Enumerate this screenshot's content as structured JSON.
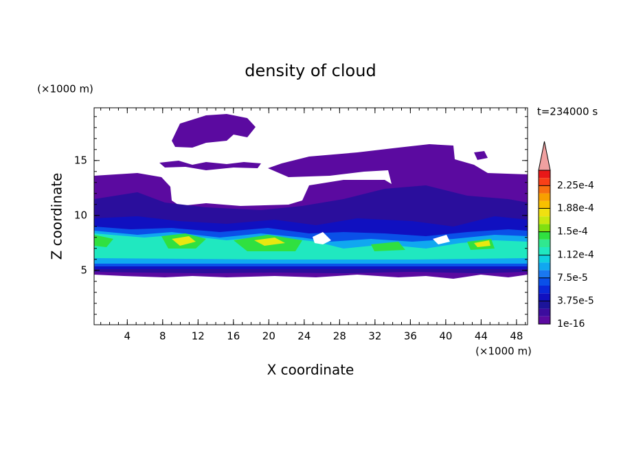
{
  "chart_data": {
    "type": "contour",
    "title": "density of cloud",
    "x_label": "X coordinate",
    "y_label": "Z coordinate",
    "x_unit": "(×1000 m)",
    "y_unit": "(×1000 m)",
    "annotation": "t=234000 s",
    "xlim": [
      0.25,
      49.25
    ],
    "ylim": [
      0.05,
      19.8
    ],
    "xticks": [
      4,
      8,
      12,
      16,
      20,
      24,
      28,
      32,
      36,
      40,
      44,
      48
    ],
    "yticks": [
      5,
      10,
      15
    ],
    "colorbar": {
      "lim": [
        1e-16,
        0.00025
      ],
      "ticks": [
        {
          "value": 1e-16,
          "label": "1e-16"
        },
        {
          "value": 3.75e-05,
          "label": "3.75e-5"
        },
        {
          "value": 7.5e-05,
          "label": "7.5e-5"
        },
        {
          "value": 0.000112,
          "label": "1.12e-4"
        },
        {
          "value": 0.00015,
          "label": "1.5e-4"
        },
        {
          "value": 0.000188,
          "label": "1.88e-4"
        },
        {
          "value": 0.000225,
          "label": "2.25e-4"
        }
      ],
      "colors": [
        "#5b0aa0",
        "#3c0c9e",
        "#1c149a",
        "#1010c0",
        "#0a28d8",
        "#0a50e8",
        "#1a78f0",
        "#10a8f0",
        "#10d0e0",
        "#20e8c0",
        "#30e890",
        "#30e040",
        "#80e010",
        "#c8e810",
        "#f0e010",
        "#f8c000",
        "#f8a000",
        "#f87010",
        "#f84018",
        "#e81818"
      ],
      "extend_color": "#f0a0a0"
    }
  }
}
